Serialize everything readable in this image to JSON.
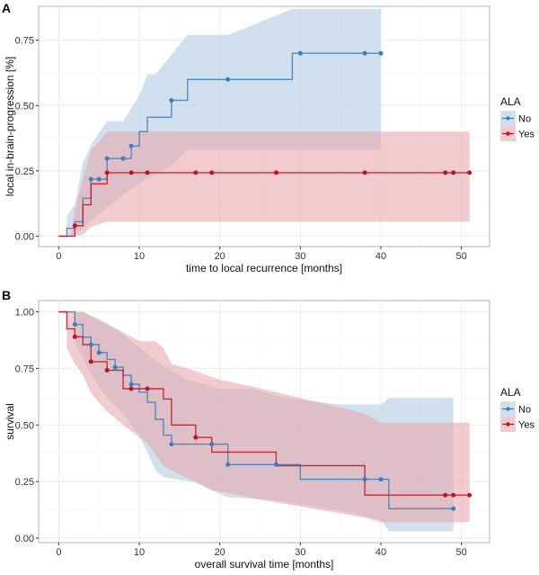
{
  "colors": {
    "no_line": "#3a7ebf",
    "no_fill": "#b3cce5",
    "yes_line": "#c0141c",
    "yes_fill": "#e8a9ab",
    "grid": "#ebebeb",
    "border": "#b3b3b3",
    "text": "#111111"
  },
  "chart_data": [
    {
      "type": "line",
      "panel_label": "A",
      "title": "",
      "xlabel": "time to local recurrence [months]",
      "ylabel": "local in-brain-progression [%]",
      "xlim": [
        -2.5,
        53.5
      ],
      "ylim": [
        -0.04,
        0.88
      ],
      "xticks": [
        0,
        10,
        20,
        30,
        40,
        50
      ],
      "xtick_labels": [
        "0",
        "10",
        "20",
        "30",
        "40",
        "50"
      ],
      "yticks": [
        0,
        0.25,
        0.5,
        0.75
      ],
      "ytick_labels": [
        "0.00",
        "0.25",
        "0.50",
        "0.75"
      ],
      "grid": true,
      "legend": {
        "title": "ALA",
        "placement": "right",
        "entries": [
          "No",
          "Yes"
        ]
      },
      "series": [
        {
          "name": "No",
          "color_key": "no",
          "step": [
            [
              0,
              0
            ],
            [
              1,
              0
            ],
            [
              1,
              0.03
            ],
            [
              2,
              0.03
            ],
            [
              2,
              0.055
            ],
            [
              3,
              0.055
            ],
            [
              3,
              0.145
            ],
            [
              4,
              0.145
            ],
            [
              4,
              0.218
            ],
            [
              6,
              0.218
            ],
            [
              6,
              0.297
            ],
            [
              9,
              0.297
            ],
            [
              9,
              0.345
            ],
            [
              10,
              0.345
            ],
            [
              10,
              0.4
            ],
            [
              11,
              0.4
            ],
            [
              11,
              0.455
            ],
            [
              14,
              0.455
            ],
            [
              14,
              0.52
            ],
            [
              16,
              0.52
            ],
            [
              16,
              0.6
            ],
            [
              29,
              0.6
            ],
            [
              29,
              0.7
            ],
            [
              40,
              0.7
            ]
          ],
          "censor": [
            [
              4,
              0.218
            ],
            [
              5,
              0.218
            ],
            [
              6,
              0.297
            ],
            [
              8,
              0.297
            ],
            [
              9,
              0.345
            ],
            [
              14,
              0.52
            ],
            [
              21,
              0.6
            ],
            [
              30,
              0.7
            ],
            [
              38,
              0.7
            ],
            [
              40,
              0.7
            ]
          ],
          "upper": [
            [
              1,
              0.03
            ],
            [
              1,
              0.08
            ],
            [
              2,
              0.12
            ],
            [
              3,
              0.28
            ],
            [
              4,
              0.35
            ],
            [
              6,
              0.44
            ],
            [
              8,
              0.44
            ],
            [
              10,
              0.54
            ],
            [
              11,
              0.62
            ],
            [
              12,
              0.62
            ],
            [
              16,
              0.77
            ],
            [
              21,
              0.77
            ],
            [
              29,
              0.87
            ],
            [
              40,
              0.87
            ]
          ],
          "lower": [
            [
              40,
              0.33
            ],
            [
              29,
              0.33
            ],
            [
              16,
              0.33
            ],
            [
              14,
              0.27
            ],
            [
              11,
              0.22
            ],
            [
              9,
              0.18
            ],
            [
              6,
              0.11
            ],
            [
              4,
              0.06
            ],
            [
              3,
              0.03
            ],
            [
              2,
              0.005
            ],
            [
              1,
              0
            ]
          ]
        },
        {
          "name": "Yes",
          "color_key": "yes",
          "step": [
            [
              0,
              0
            ],
            [
              2,
              0
            ],
            [
              2,
              0.04
            ],
            [
              3,
              0.04
            ],
            [
              3,
              0.12
            ],
            [
              4,
              0.12
            ],
            [
              4,
              0.2
            ],
            [
              6,
              0.2
            ],
            [
              6,
              0.243
            ],
            [
              51,
              0.243
            ]
          ],
          "censor": [
            [
              2,
              0.04
            ],
            [
              6,
              0.243
            ],
            [
              9,
              0.243
            ],
            [
              11,
              0.243
            ],
            [
              17,
              0.243
            ],
            [
              19,
              0.243
            ],
            [
              27,
              0.243
            ],
            [
              38,
              0.243
            ],
            [
              48,
              0.243
            ],
            [
              49,
              0.243
            ],
            [
              51,
              0.243
            ]
          ],
          "upper": [
            [
              1.5,
              0
            ],
            [
              2,
              0.1
            ],
            [
              3,
              0.22
            ],
            [
              4,
              0.33
            ],
            [
              5,
              0.36
            ],
            [
              6,
              0.4
            ],
            [
              51,
              0.4
            ]
          ],
          "lower": [
            [
              51,
              0.055
            ],
            [
              6,
              0.055
            ],
            [
              5,
              0.045
            ],
            [
              4,
              0.035
            ],
            [
              3,
              0.005
            ],
            [
              2,
              0
            ]
          ]
        }
      ]
    },
    {
      "type": "line",
      "panel_label": "B",
      "title": "",
      "xlabel": "overall survival time [months]",
      "ylabel": "survival",
      "xlim": [
        -2.5,
        53.5
      ],
      "ylim": [
        -0.02,
        1.05
      ],
      "xticks": [
        0,
        10,
        20,
        30,
        40,
        50
      ],
      "xtick_labels": [
        "0",
        "10",
        "20",
        "30",
        "40",
        "50"
      ],
      "yticks": [
        0,
        0.25,
        0.5,
        0.75,
        1
      ],
      "ytick_labels": [
        "0.00",
        "0.25",
        "0.50",
        "0.75",
        "1.00"
      ],
      "grid": true,
      "legend": {
        "title": "ALA",
        "placement": "right",
        "entries": [
          "No",
          "Yes"
        ]
      },
      "series": [
        {
          "name": "No",
          "color_key": "no",
          "step": [
            [
              0,
              1
            ],
            [
              2,
              1
            ],
            [
              2,
              0.944
            ],
            [
              3,
              0.944
            ],
            [
              3,
              0.888
            ],
            [
              4,
              0.888
            ],
            [
              4,
              0.855
            ],
            [
              5,
              0.855
            ],
            [
              5,
              0.82
            ],
            [
              6,
              0.82
            ],
            [
              6,
              0.79
            ],
            [
              7,
              0.79
            ],
            [
              7,
              0.755
            ],
            [
              8,
              0.755
            ],
            [
              8,
              0.72
            ],
            [
              9,
              0.72
            ],
            [
              9,
              0.68
            ],
            [
              10,
              0.68
            ],
            [
              10,
              0.645
            ],
            [
              11,
              0.645
            ],
            [
              11,
              0.6
            ],
            [
              12,
              0.6
            ],
            [
              12,
              0.525
            ],
            [
              13,
              0.525
            ],
            [
              13,
              0.455
            ],
            [
              14,
              0.455
            ],
            [
              14,
              0.415
            ],
            [
              19,
              0.415
            ],
            [
              19,
              0.415
            ],
            [
              21,
              0.415
            ],
            [
              21,
              0.325
            ],
            [
              30,
              0.325
            ],
            [
              30,
              0.26
            ],
            [
              41,
              0.26
            ],
            [
              41,
              0.13
            ],
            [
              49,
              0.13
            ]
          ],
          "censor": [
            [
              2,
              0.944
            ],
            [
              4,
              0.855
            ],
            [
              5,
              0.82
            ],
            [
              7,
              0.755
            ],
            [
              9,
              0.68
            ],
            [
              14,
              0.415
            ],
            [
              19,
              0.415
            ],
            [
              21,
              0.325
            ],
            [
              27,
              0.325
            ],
            [
              38,
              0.26
            ],
            [
              40,
              0.26
            ],
            [
              49,
              0.13
            ]
          ],
          "upper": [
            [
              2,
              1
            ],
            [
              3,
              1
            ],
            [
              5,
              0.97
            ],
            [
              7,
              0.93
            ],
            [
              9,
              0.87
            ],
            [
              13,
              0.76
            ],
            [
              16,
              0.7
            ],
            [
              20,
              0.66
            ],
            [
              24,
              0.66
            ],
            [
              28,
              0.62
            ],
            [
              35,
              0.59
            ],
            [
              40,
              0.59
            ],
            [
              41,
              0.62
            ],
            [
              49,
              0.62
            ]
          ],
          "lower": [
            [
              49,
              0.03
            ],
            [
              41,
              0.03
            ],
            [
              40,
              0.08
            ],
            [
              35,
              0.12
            ],
            [
              30,
              0.15
            ],
            [
              26,
              0.17
            ],
            [
              21,
              0.18
            ],
            [
              17,
              0.245
            ],
            [
              13,
              0.27
            ],
            [
              12,
              0.3
            ],
            [
              11,
              0.38
            ],
            [
              10,
              0.45
            ],
            [
              9,
              0.5
            ],
            [
              8,
              0.55
            ],
            [
              6,
              0.62
            ],
            [
              4,
              0.72
            ],
            [
              3,
              0.8
            ],
            [
              2,
              0.86
            ]
          ]
        },
        {
          "name": "Yes",
          "color_key": "yes",
          "step": [
            [
              0,
              1
            ],
            [
              1,
              1
            ],
            [
              1,
              0.925
            ],
            [
              2,
              0.925
            ],
            [
              2,
              0.89
            ],
            [
              3,
              0.89
            ],
            [
              3,
              0.855
            ],
            [
              4,
              0.855
            ],
            [
              4,
              0.78
            ],
            [
              6,
              0.78
            ],
            [
              6,
              0.742
            ],
            [
              8,
              0.742
            ],
            [
              8,
              0.66
            ],
            [
              13,
              0.66
            ],
            [
              13,
              0.615
            ],
            [
              14,
              0.615
            ],
            [
              14,
              0.5
            ],
            [
              17,
              0.5
            ],
            [
              17,
              0.445
            ],
            [
              19,
              0.445
            ],
            [
              19,
              0.38
            ],
            [
              27,
              0.38
            ],
            [
              27,
              0.32
            ],
            [
              38,
              0.32
            ],
            [
              38,
              0.19
            ],
            [
              51,
              0.19
            ]
          ],
          "censor": [
            [
              2,
              0.89
            ],
            [
              4,
              0.78
            ],
            [
              6,
              0.742
            ],
            [
              9,
              0.66
            ],
            [
              11,
              0.66
            ],
            [
              17,
              0.445
            ],
            [
              48,
              0.19
            ],
            [
              49,
              0.19
            ],
            [
              51,
              0.19
            ]
          ],
          "upper": [
            [
              1,
              1
            ],
            [
              3,
              1
            ],
            [
              5,
              0.96
            ],
            [
              8,
              0.91
            ],
            [
              10,
              0.87
            ],
            [
              12,
              0.87
            ],
            [
              13,
              0.84
            ],
            [
              14,
              0.77
            ],
            [
              16,
              0.75
            ],
            [
              20,
              0.7
            ],
            [
              24,
              0.67
            ],
            [
              30,
              0.62
            ],
            [
              38,
              0.55
            ],
            [
              40,
              0.51
            ],
            [
              51,
              0.51
            ]
          ],
          "lower": [
            [
              51,
              0.07
            ],
            [
              40,
              0.07
            ],
            [
              38,
              0.09
            ],
            [
              30,
              0.14
            ],
            [
              25,
              0.17
            ],
            [
              21,
              0.2
            ],
            [
              19,
              0.21
            ],
            [
              17,
              0.25
            ],
            [
              15,
              0.28
            ],
            [
              13,
              0.32
            ],
            [
              11,
              0.42
            ],
            [
              8,
              0.5
            ],
            [
              6,
              0.56
            ],
            [
              4,
              0.64
            ],
            [
              3,
              0.72
            ],
            [
              2,
              0.77
            ],
            [
              1,
              0.84
            ]
          ]
        }
      ]
    }
  ]
}
